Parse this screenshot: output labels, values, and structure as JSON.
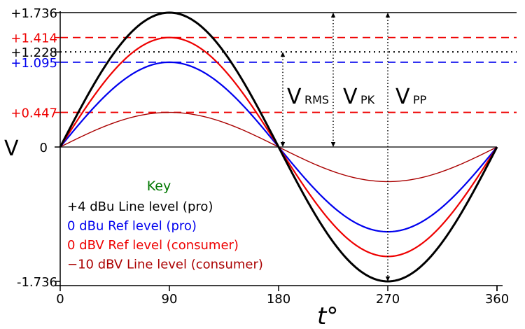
{
  "chart_data": {
    "type": "line",
    "xlabel": "t°",
    "ylabel": "V",
    "xlim": [
      0,
      360
    ],
    "ylim": [
      -1.736,
      1.736
    ],
    "x_ticks": [
      0,
      90,
      180,
      270,
      360
    ],
    "x_tick_labels": [
      "0",
      "90",
      "180",
      "270",
      "360"
    ],
    "y_tick_labels": [
      {
        "value": 1.736,
        "text": "+1.736",
        "color": "#000000"
      },
      {
        "value": 1.414,
        "text": "+1.414",
        "color": "#ee0000"
      },
      {
        "value": 1.228,
        "text": "+1.228",
        "color": "#000000"
      },
      {
        "value": 1.095,
        "text": "+1.095",
        "color": "#0000ee"
      },
      {
        "value": 0.447,
        "text": "+0.447",
        "color": "#ee0000"
      },
      {
        "value": 0,
        "text": "0",
        "color": "#000000"
      },
      {
        "value": -1.736,
        "text": "-1.736",
        "color": "#000000"
      }
    ],
    "reference_lines": [
      {
        "value": 1.736,
        "style": "solid",
        "color": "#000000"
      },
      {
        "value": 1.414,
        "style": "dashed",
        "color": "#ee0000"
      },
      {
        "value": 1.228,
        "style": "dotted",
        "color": "#000000"
      },
      {
        "value": 1.095,
        "style": "dashed",
        "color": "#0000ee"
      },
      {
        "value": 0.447,
        "style": "dashed",
        "color": "#ee0000"
      }
    ],
    "series": [
      {
        "name": "+4 dBu Line level (pro)",
        "amplitude": 1.736,
        "color": "#000000"
      },
      {
        "name": "0 dBu Ref level (pro)",
        "amplitude": 1.095,
        "color": "#0000ee"
      },
      {
        "name": "0 dBV Ref level (consumer)",
        "amplitude": 1.414,
        "color": "#ee0000"
      },
      {
        "name": "−10 dBV Line level (consumer)",
        "amplitude": 0.447,
        "color": "#aa0000"
      }
    ],
    "annotations": [
      {
        "main": "V",
        "sub": "RMS",
        "x": 180,
        "from": 0,
        "to": 1.228
      },
      {
        "main": "V",
        "sub": "PK",
        "x": 225,
        "from": 0,
        "to": 1.736
      },
      {
        "main": "V",
        "sub": "PP",
        "x": 270,
        "from": -1.736,
        "to": 1.736
      }
    ],
    "legend": {
      "title": "Key",
      "title_color": "#007700",
      "placement": "lower-left"
    },
    "grid": false
  }
}
